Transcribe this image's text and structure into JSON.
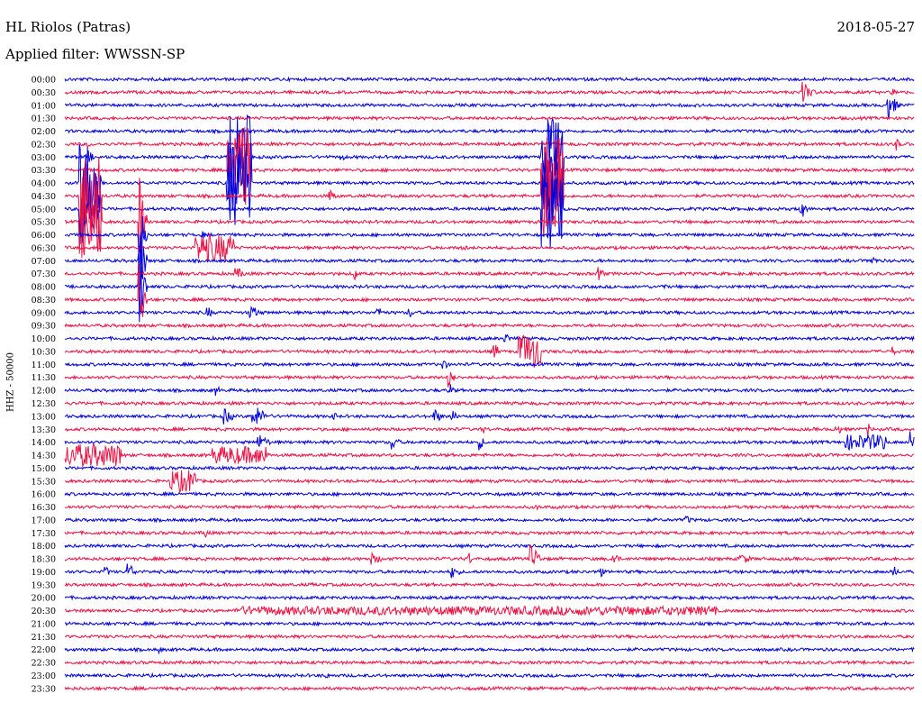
{
  "header": {
    "station": "HL Riolos (Patras)",
    "date": "2018-05-27",
    "filter": "Applied filter: WWSSN-SP"
  },
  "colors": {
    "even": "#0000dd",
    "odd": "#ee1144"
  },
  "chart_data": {
    "type": "line",
    "title": "HL Riolos (Patras)",
    "subtitle": "Applied filter: WWSSN-SP",
    "date": "2018-05-27",
    "ylabel": "HHZ - 50000",
    "xlabel": "",
    "x_unit": "minutes within each 30-minute trace",
    "xlim": [
      0,
      30
    ],
    "grid": false,
    "series": [
      {
        "label": "00:00",
        "events": []
      },
      {
        "label": "00:30",
        "events": [
          [
            26.0,
            0.6,
            0.9
          ],
          [
            29.2,
            0.3,
            0.4
          ]
        ]
      },
      {
        "label": "01:00",
        "events": [
          [
            29.0,
            0.5,
            1.2
          ]
        ]
      },
      {
        "label": "01:30",
        "events": []
      },
      {
        "label": "02:00",
        "events": []
      },
      {
        "label": "02:30",
        "events": [
          [
            0.8,
            0.2,
            0.3
          ],
          [
            29.3,
            0.3,
            0.6
          ]
        ]
      },
      {
        "label": "03:00",
        "events": [
          [
            0.8,
            0.3,
            0.6
          ],
          [
            5.7,
            0.9,
            3.4
          ],
          [
            16.8,
            0.8,
            3.4
          ],
          [
            9.7,
            0.3,
            0.4
          ]
        ]
      },
      {
        "label": "03:30",
        "events": [
          [
            5.7,
            0.9,
            3.4
          ],
          [
            16.8,
            0.8,
            3.4
          ]
        ]
      },
      {
        "label": "04:00",
        "events": [
          [
            0.5,
            0.8,
            3.2
          ],
          [
            5.7,
            0.9,
            3.4
          ],
          [
            16.8,
            0.8,
            3.4
          ]
        ]
      },
      {
        "label": "04:30",
        "events": [
          [
            0.5,
            0.8,
            3.2
          ],
          [
            9.3,
            0.4,
            0.6
          ],
          [
            16.8,
            0.8,
            3.4
          ]
        ]
      },
      {
        "label": "05:00",
        "events": [
          [
            0.5,
            0.8,
            3.2
          ],
          [
            16.8,
            0.8,
            3.4
          ],
          [
            25.9,
            0.3,
            1.3
          ]
        ]
      },
      {
        "label": "05:30",
        "events": [
          [
            0.5,
            0.8,
            3.2
          ],
          [
            2.6,
            0.3,
            4.0
          ]
        ]
      },
      {
        "label": "06:00",
        "events": [
          [
            2.6,
            0.3,
            4.0
          ],
          [
            4.8,
            0.2,
            0.5
          ]
        ]
      },
      {
        "label": "06:30",
        "events": [
          [
            4.6,
            1.4,
            1.1
          ],
          [
            14.0,
            0.3,
            0.4
          ]
        ]
      },
      {
        "label": "07:00",
        "events": [
          [
            2.6,
            0.3,
            4.0
          ],
          [
            28.4,
            0.4,
            0.5
          ]
        ]
      },
      {
        "label": "07:30",
        "events": [
          [
            6.0,
            0.6,
            0.5
          ],
          [
            10.2,
            0.2,
            0.8
          ],
          [
            18.8,
            0.3,
            0.8
          ]
        ]
      },
      {
        "label": "08:00",
        "events": [
          [
            2.6,
            0.3,
            4.0
          ],
          [
            21.0,
            0.4,
            0.3
          ]
        ]
      },
      {
        "label": "08:30",
        "events": [
          [
            2.6,
            0.3,
            3.5
          ]
        ]
      },
      {
        "label": "09:00",
        "events": [
          [
            5.0,
            0.3,
            0.6
          ],
          [
            6.5,
            0.6,
            0.6
          ],
          [
            11.0,
            0.4,
            0.5
          ],
          [
            12.1,
            0.3,
            0.6
          ]
        ]
      },
      {
        "label": "09:30",
        "events": []
      },
      {
        "label": "10:00",
        "events": [
          [
            15.5,
            0.5,
            0.4
          ]
        ]
      },
      {
        "label": "10:30",
        "events": [
          [
            15.1,
            0.3,
            0.9
          ],
          [
            16.0,
            0.8,
            1.4
          ],
          [
            29.2,
            0.2,
            0.4
          ]
        ]
      },
      {
        "label": "11:00",
        "events": [
          [
            13.3,
            0.3,
            0.6
          ]
        ]
      },
      {
        "label": "11:30",
        "events": [
          [
            13.5,
            0.3,
            1.2
          ]
        ]
      },
      {
        "label": "12:00",
        "events": [
          [
            5.3,
            0.3,
            0.5
          ],
          [
            13.5,
            0.3,
            0.8
          ]
        ]
      },
      {
        "label": "12:30",
        "events": []
      },
      {
        "label": "13:00",
        "events": [
          [
            5.6,
            0.5,
            0.7
          ],
          [
            6.6,
            0.7,
            1.0
          ],
          [
            9.4,
            0.3,
            0.5
          ],
          [
            13.0,
            0.4,
            0.7
          ],
          [
            13.6,
            0.3,
            0.8
          ]
        ]
      },
      {
        "label": "13:30",
        "events": [
          [
            14.7,
            0.2,
            0.6
          ],
          [
            27.2,
            0.3,
            0.6
          ],
          [
            28.3,
            0.2,
            0.8
          ]
        ]
      },
      {
        "label": "14:00",
        "events": [
          [
            6.8,
            0.6,
            0.7
          ],
          [
            11.5,
            0.4,
            0.8
          ],
          [
            14.6,
            0.3,
            0.7
          ],
          [
            27.5,
            1.5,
            0.6
          ],
          [
            29.8,
            0.3,
            1.0
          ]
        ]
      },
      {
        "label": "14:30",
        "events": [
          [
            0.0,
            2.0,
            0.9
          ],
          [
            5.2,
            2.0,
            0.7
          ]
        ]
      },
      {
        "label": "15:00",
        "events": []
      },
      {
        "label": "15:30",
        "events": [
          [
            3.7,
            1.0,
            0.9
          ]
        ]
      },
      {
        "label": "16:00",
        "events": []
      },
      {
        "label": "16:30",
        "events": [
          [
            16.6,
            0.2,
            0.4
          ]
        ]
      },
      {
        "label": "17:00",
        "events": [
          [
            21.9,
            0.4,
            0.4
          ]
        ]
      },
      {
        "label": "17:30",
        "events": [
          [
            4.9,
            0.3,
            0.6
          ]
        ]
      },
      {
        "label": "18:00",
        "events": []
      },
      {
        "label": "18:30",
        "events": [
          [
            10.8,
            0.6,
            0.5
          ],
          [
            14.2,
            0.2,
            0.9
          ],
          [
            16.4,
            0.5,
            1.3
          ],
          [
            19.3,
            0.4,
            0.6
          ],
          [
            23.8,
            0.6,
            0.5
          ]
        ]
      },
      {
        "label": "19:00",
        "events": [
          [
            1.4,
            0.3,
            0.5
          ],
          [
            2.2,
            0.4,
            0.8
          ],
          [
            13.6,
            0.5,
            0.6
          ],
          [
            18.8,
            0.3,
            0.7
          ],
          [
            29.2,
            0.3,
            0.6
          ]
        ]
      },
      {
        "label": "19:30",
        "events": [
          [
            8.7,
            0.2,
            0.3
          ]
        ]
      },
      {
        "label": "20:00",
        "events": []
      },
      {
        "label": "20:30",
        "events": [
          [
            6.0,
            17.0,
            0.35
          ],
          [
            21.7,
            0.3,
            0.5
          ]
        ]
      },
      {
        "label": "21:00",
        "events": []
      },
      {
        "label": "21:30",
        "events": []
      },
      {
        "label": "22:00",
        "events": [
          [
            3.3,
            0.2,
            0.4
          ]
        ]
      },
      {
        "label": "22:30",
        "events": []
      },
      {
        "label": "23:00",
        "events": [
          [
            9.2,
            0.3,
            0.3
          ]
        ]
      },
      {
        "label": "23:30",
        "events": []
      }
    ]
  }
}
